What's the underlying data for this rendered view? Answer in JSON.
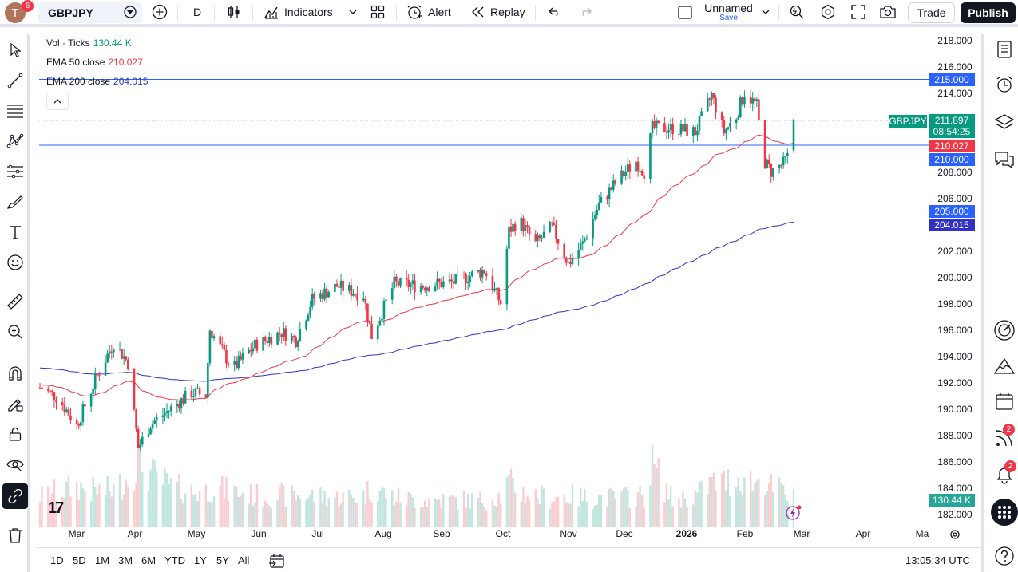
{
  "header": {
    "avatar_letter": "T",
    "avatar_badge": "6",
    "symbol": "GBPJPY",
    "interval": "D",
    "indicators_label": "Indicators",
    "alert_label": "Alert",
    "replay_label": "Replay",
    "layout_name": "Unnamed",
    "save_label": "Save",
    "trade_label": "Trade",
    "publish_label": "Publish"
  },
  "legend": {
    "vol_label": "Vol · Ticks",
    "vol_value": "130.44 K",
    "ema50_label": "EMA 50 close",
    "ema50_value": "210.027",
    "ema200_label": "EMA 200 close",
    "ema200_value": "204.015"
  },
  "colors": {
    "up": "#089981",
    "down": "#f23645",
    "ema50": "#f23645",
    "ema200": "#2e35c4",
    "hline": "#2962ff",
    "hline_tag": "#2962ff",
    "ema200_tag": "#3131c8"
  },
  "price_axis": {
    "ticks": [
      "218.000",
      "216.000",
      "214.000",
      "212.000",
      "210.000",
      "208.000",
      "206.000",
      "204.000",
      "202.000",
      "200.000",
      "198.000",
      "196.000",
      "194.000",
      "192.000",
      "190.000",
      "188.000",
      "186.000",
      "184.000",
      "182.000"
    ],
    "last_price": "211.897",
    "countdown": "08:54:25",
    "ema50_tag": "210.027",
    "ema200_tag": "204.015",
    "volume_tag": "130.44 K",
    "symbol_tag": "GBPJPY"
  },
  "horizontal_lines": [
    "215.000",
    "210.000",
    "205.000"
  ],
  "time_axis": {
    "labels": [
      {
        "text": "Mar",
        "bold": false
      },
      {
        "text": "Apr",
        "bold": false
      },
      {
        "text": "May",
        "bold": false
      },
      {
        "text": "Jun",
        "bold": false
      },
      {
        "text": "Jul",
        "bold": false
      },
      {
        "text": "Aug",
        "bold": false
      },
      {
        "text": "Sep",
        "bold": false
      },
      {
        "text": "Oct",
        "bold": false
      },
      {
        "text": "Nov",
        "bold": false
      },
      {
        "text": "Dec",
        "bold": false
      },
      {
        "text": "2026",
        "bold": true
      },
      {
        "text": "Feb",
        "bold": false
      },
      {
        "text": "Mar",
        "bold": false
      },
      {
        "text": "Apr",
        "bold": false
      },
      {
        "text": "Ma",
        "bold": false
      }
    ]
  },
  "bottom": {
    "ranges": [
      "1D",
      "5D",
      "1M",
      "3M",
      "6M",
      "YTD",
      "1Y",
      "5Y",
      "All"
    ],
    "clock": "13:05:34 UTC"
  },
  "right_sidebar": {
    "notif_badge": "2",
    "alert_badge": "2"
  },
  "chart_data": {
    "type": "candlestick",
    "symbol": "GBPJPY",
    "interval": "D",
    "y_range": [
      182,
      218
    ],
    "ema50_last": 210.027,
    "ema200_last": 204.015,
    "last_price": 211.897,
    "anchors": [
      {
        "date": "2025-02-20",
        "close": 191.6,
        "vol": 0.35
      },
      {
        "date": "2025-03-01",
        "close": 190.8,
        "vol": 0.4
      },
      {
        "date": "2025-03-10",
        "close": 188.7,
        "vol": 0.45
      },
      {
        "date": "2025-03-20",
        "close": 192.5,
        "vol": 0.4
      },
      {
        "date": "2025-03-28",
        "close": 195.0,
        "vol": 0.42
      },
      {
        "date": "2025-04-04",
        "close": 193.5,
        "vol": 0.55
      },
      {
        "date": "2025-04-09",
        "close": 187.0,
        "vol": 0.75
      },
      {
        "date": "2025-04-15",
        "close": 188.8,
        "vol": 0.6
      },
      {
        "date": "2025-04-25",
        "close": 190.0,
        "vol": 0.45
      },
      {
        "date": "2025-05-05",
        "close": 191.2,
        "vol": 0.4
      },
      {
        "date": "2025-05-12",
        "close": 191.0,
        "vol": 0.4
      },
      {
        "date": "2025-05-14",
        "close": 196.0,
        "vol": 0.45
      },
      {
        "date": "2025-05-25",
        "close": 193.0,
        "vol": 0.4
      },
      {
        "date": "2025-06-05",
        "close": 194.8,
        "vol": 0.35
      },
      {
        "date": "2025-06-18",
        "close": 195.8,
        "vol": 0.35
      },
      {
        "date": "2025-06-25",
        "close": 195.2,
        "vol": 0.35
      },
      {
        "date": "2025-07-03",
        "close": 198.3,
        "vol": 0.35
      },
      {
        "date": "2025-07-15",
        "close": 199.3,
        "vol": 0.33
      },
      {
        "date": "2025-07-28",
        "close": 198.6,
        "vol": 0.35
      },
      {
        "date": "2025-08-01",
        "close": 195.5,
        "vol": 0.45
      },
      {
        "date": "2025-08-12",
        "close": 199.5,
        "vol": 0.33
      },
      {
        "date": "2025-08-25",
        "close": 199.3,
        "vol": 0.3
      },
      {
        "date": "2025-09-10",
        "close": 199.6,
        "vol": 0.3
      },
      {
        "date": "2025-09-25",
        "close": 200.5,
        "vol": 0.3
      },
      {
        "date": "2025-10-03",
        "close": 198.0,
        "vol": 0.35
      },
      {
        "date": "2025-10-07",
        "close": 203.5,
        "vol": 0.5
      },
      {
        "date": "2025-10-12",
        "close": 204.3,
        "vol": 0.4
      },
      {
        "date": "2025-10-20",
        "close": 202.5,
        "vol": 0.35
      },
      {
        "date": "2025-10-28",
        "close": 203.8,
        "vol": 0.33
      },
      {
        "date": "2025-11-05",
        "close": 201.0,
        "vol": 0.35
      },
      {
        "date": "2025-11-12",
        "close": 202.5,
        "vol": 0.33
      },
      {
        "date": "2025-11-20",
        "close": 205.5,
        "vol": 0.33
      },
      {
        "date": "2025-11-30",
        "close": 207.5,
        "vol": 0.33
      },
      {
        "date": "2025-12-08",
        "close": 208.8,
        "vol": 0.35
      },
      {
        "date": "2025-12-12",
        "close": 208.0,
        "vol": 0.35
      },
      {
        "date": "2025-12-16",
        "close": 211.3,
        "vol": 0.7
      },
      {
        "date": "2025-12-26",
        "close": 211.3,
        "vol": 0.3
      },
      {
        "date": "2026-01-06",
        "close": 211.0,
        "vol": 0.35
      },
      {
        "date": "2026-01-14",
        "close": 213.8,
        "vol": 0.5
      },
      {
        "date": "2026-01-20",
        "close": 211.0,
        "vol": 0.5
      },
      {
        "date": "2026-01-26",
        "close": 212.2,
        "vol": 0.55
      },
      {
        "date": "2026-01-30",
        "close": 214.0,
        "vol": 0.55
      },
      {
        "date": "2026-02-05",
        "close": 213.0,
        "vol": 0.5
      },
      {
        "date": "2026-02-08",
        "close": 209.0,
        "vol": 0.6
      },
      {
        "date": "2026-02-12",
        "close": 208.0,
        "vol": 0.45
      },
      {
        "date": "2026-02-18",
        "close": 208.6,
        "vol": 0.4
      },
      {
        "date": "2026-02-21",
        "close": 209.3,
        "vol": 0.35
      },
      {
        "date": "2026-02-23",
        "close": 211.897,
        "vol": 0.32
      }
    ]
  }
}
